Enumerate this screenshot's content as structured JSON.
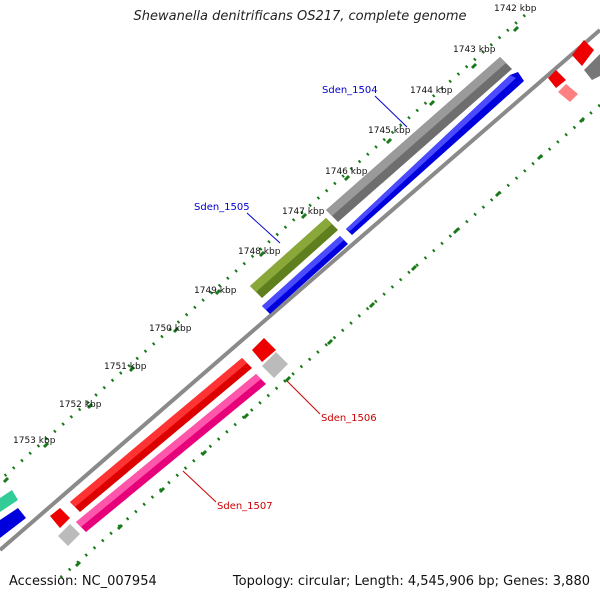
{
  "title": "Shewanella denitrificans OS217, complete genome",
  "footer": {
    "accession": "Accession: NC_007954",
    "summary": "Topology: circular; Length: 4,545,906 bp; Genes: 3,880"
  },
  "scale": {
    "ticks": [
      "1742 kbp",
      "1743 kbp",
      "1744 kbp",
      "1745 kbp",
      "1746 kbp",
      "1747 kbp",
      "1748 kbp",
      "1749 kbp",
      "1750 kbp",
      "1751 kbp",
      "1752 kbp",
      "1753 kbp"
    ],
    "tick_color": "#1a7a1a"
  },
  "genes": [
    {
      "label": "Sden_1504",
      "color": "#0000cc"
    },
    {
      "label": "Sden_1505",
      "color": "#0000cc"
    },
    {
      "label": "Sden_1506",
      "color": "#cc0000"
    },
    {
      "label": "Sden_1507",
      "color": "#cc0000"
    }
  ],
  "colors": {
    "gray_feature": "#777777",
    "olive_feature": "#6b8e23",
    "blue_feature": "#0000ee",
    "red_feature": "#ee0000",
    "pink_feature": "#ff1493",
    "light_gray_feature": "#bbbbbb",
    "teal_feature": "#33cc99",
    "backbone": "#888888"
  }
}
